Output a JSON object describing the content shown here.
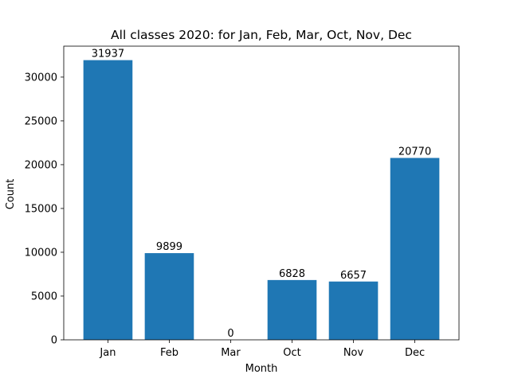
{
  "chart_data": {
    "type": "bar",
    "title": "All classes 2020: for Jan, Feb, Mar, Oct, Nov, Dec",
    "xlabel": "Month",
    "ylabel": "Count",
    "categories": [
      "Jan",
      "Feb",
      "Mar",
      "Oct",
      "Nov",
      "Dec"
    ],
    "values": [
      31937,
      9899,
      0,
      6828,
      6657,
      20770
    ],
    "data_labels": [
      "31937",
      "9899",
      "0",
      "6828",
      "6657",
      "20770"
    ],
    "ylim": [
      0,
      33534
    ],
    "yticks": [
      0,
      5000,
      10000,
      15000,
      20000,
      25000,
      30000
    ],
    "ytick_labels": [
      "0",
      "5000",
      "10000",
      "15000",
      "20000",
      "25000",
      "30000"
    ],
    "grid": false,
    "legend": "none",
    "bar_color": "#1f77b4"
  }
}
